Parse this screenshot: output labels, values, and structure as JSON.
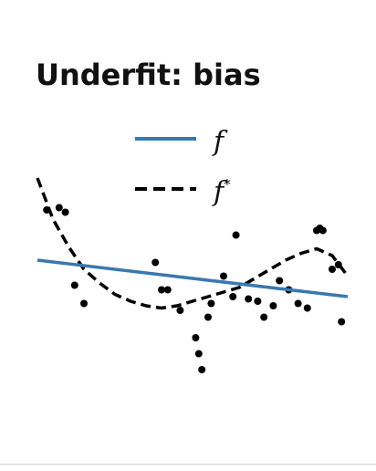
{
  "chart_data": {
    "type": "scatter",
    "title": "Underfit: bias",
    "xlabel": "",
    "ylabel": "",
    "xlim": [
      0,
      100
    ],
    "ylim": [
      -60,
      60
    ],
    "grid": false,
    "legend_position": "top",
    "series": [
      {
        "name": "f",
        "kind": "line",
        "style": "solid",
        "color": "#3a78b0",
        "x": [
          0,
          100
        ],
        "y": [
          4,
          -12
        ]
      },
      {
        "name": "f*",
        "kind": "line",
        "style": "dashed",
        "color": "#000000",
        "x": [
          0,
          5,
          10,
          15,
          20,
          25,
          30,
          35,
          40,
          45,
          50,
          55,
          60,
          65,
          70,
          75,
          80,
          85,
          90,
          95,
          100
        ],
        "y": [
          40,
          22,
          10,
          0,
          -6,
          -11,
          -14,
          -16,
          -17,
          -16,
          -14,
          -12,
          -10,
          -8,
          -4,
          0,
          4,
          7,
          9,
          6,
          -3
        ]
      },
      {
        "name": "",
        "kind": "scatter",
        "color": "#000000",
        "x": [
          3,
          7,
          9,
          12,
          15,
          40,
          38,
          42,
          46,
          51,
          52,
          53,
          55,
          56,
          60,
          63,
          64,
          68,
          71,
          73,
          76,
          78,
          81,
          84,
          87,
          90,
          91,
          92,
          95,
          97,
          98
        ],
        "y": [
          26,
          27,
          25,
          -7,
          -15,
          -9,
          3,
          -9,
          -18,
          -30,
          -37,
          -44,
          -21,
          -15,
          -3,
          -12,
          15,
          -13,
          -14,
          -21,
          -16,
          -5,
          -9,
          -15,
          -17,
          17,
          18,
          17,
          0,
          2,
          -23
        ]
      }
    ]
  }
}
